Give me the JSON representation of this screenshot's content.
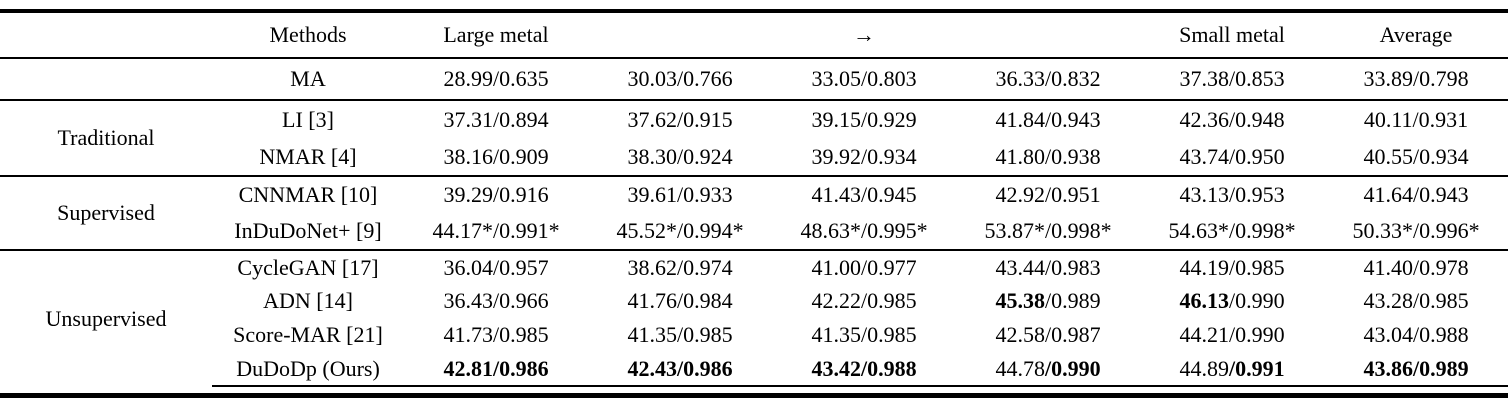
{
  "colors": {
    "text": "#000000",
    "background": "#ffffff",
    "rule": "#000000"
  },
  "table": {
    "header": {
      "group": "",
      "methods": "Methods",
      "data_cols": [
        "Large metal",
        "",
        "→",
        "",
        "Small metal",
        "Average"
      ]
    },
    "metric_format": "PSNR/SSIM",
    "sections": [
      {
        "group": "",
        "rows": [
          {
            "method": "MA",
            "cells": [
              {
                "p": "28.99",
                "s": "0.635"
              },
              {
                "p": "30.03",
                "s": "0.766"
              },
              {
                "p": "33.05",
                "s": "0.803"
              },
              {
                "p": "36.33",
                "s": "0.832"
              },
              {
                "p": "37.38",
                "s": "0.853"
              },
              {
                "p": "33.89",
                "s": "0.798"
              }
            ]
          }
        ]
      },
      {
        "group": "Traditional",
        "rows": [
          {
            "method": "LI [3]",
            "cells": [
              {
                "p": "37.31",
                "s": "0.894"
              },
              {
                "p": "37.62",
                "s": "0.915"
              },
              {
                "p": "39.15",
                "s": "0.929"
              },
              {
                "p": "41.84",
                "s": "0.943"
              },
              {
                "p": "42.36",
                "s": "0.948"
              },
              {
                "p": "40.11",
                "s": "0.931"
              }
            ]
          },
          {
            "method": "NMAR [4]",
            "cells": [
              {
                "p": "38.16",
                "s": "0.909"
              },
              {
                "p": "38.30",
                "s": "0.924"
              },
              {
                "p": "39.92",
                "s": "0.934"
              },
              {
                "p": "41.80",
                "s": "0.938"
              },
              {
                "p": "43.74",
                "s": "0.950"
              },
              {
                "p": "40.55",
                "s": "0.934"
              }
            ]
          }
        ]
      },
      {
        "group": "Supervised",
        "rows": [
          {
            "method": "CNNMAR [10]",
            "cells": [
              {
                "p": "39.29",
                "s": "0.916"
              },
              {
                "p": "39.61",
                "s": "0.933"
              },
              {
                "p": "41.43",
                "s": "0.945"
              },
              {
                "p": "42.92",
                "s": "0.951"
              },
              {
                "p": "43.13",
                "s": "0.953"
              },
              {
                "p": "41.64",
                "s": "0.943"
              }
            ]
          },
          {
            "method": "InDuDoNet+ [9]",
            "cells": [
              {
                "p": "44.17*",
                "s": "0.991*"
              },
              {
                "p": "45.52*",
                "s": "0.994*"
              },
              {
                "p": "48.63*",
                "s": "0.995*"
              },
              {
                "p": "53.87*",
                "s": "0.998*"
              },
              {
                "p": "54.63*",
                "s": "0.998*"
              },
              {
                "p": "50.33*",
                "s": "0.996*"
              }
            ]
          }
        ]
      },
      {
        "group": "Unsupervised",
        "rows": [
          {
            "method": "CycleGAN [17]",
            "cells": [
              {
                "p": "36.04",
                "s": "0.957"
              },
              {
                "p": "38.62",
                "s": "0.974"
              },
              {
                "p": "41.00",
                "s": "0.977"
              },
              {
                "p": "43.44",
                "s": "0.983"
              },
              {
                "p": "44.19",
                "s": "0.985"
              },
              {
                "p": "41.40",
                "s": "0.978"
              }
            ]
          },
          {
            "method": "ADN [14]",
            "cells": [
              {
                "p": "36.43",
                "s": "0.966"
              },
              {
                "p": "41.76",
                "s": "0.984"
              },
              {
                "p": "42.22",
                "s": "0.985"
              },
              {
                "p": "45.38",
                "s": "0.989",
                "bp": true
              },
              {
                "p": "46.13",
                "s": "0.990",
                "bp": true
              },
              {
                "p": "43.28",
                "s": "0.985"
              }
            ]
          },
          {
            "method": "Score-MAR [21]",
            "cells": [
              {
                "p": "41.73",
                "s": "0.985"
              },
              {
                "p": "41.35",
                "s": "0.985"
              },
              {
                "p": "41.35",
                "s": "0.985"
              },
              {
                "p": "42.58",
                "s": "0.987"
              },
              {
                "p": "44.21",
                "s": "0.990"
              },
              {
                "p": "43.04",
                "s": "0.988"
              }
            ]
          },
          {
            "method": "DuDoDp (Ours)",
            "cells": [
              {
                "p": "42.81",
                "s": "0.986",
                "bp": true,
                "bs": true
              },
              {
                "p": "42.43",
                "s": "0.986",
                "bp": true,
                "bs": true
              },
              {
                "p": "43.42",
                "s": "0.988",
                "bp": true,
                "bs": true
              },
              {
                "p": "44.78",
                "s": "0.990",
                "bs": true
              },
              {
                "p": "44.89",
                "s": "0.991",
                "bs": true
              },
              {
                "p": "43.86",
                "s": "0.989",
                "bp": true,
                "bs": true
              }
            ]
          }
        ]
      }
    ]
  }
}
